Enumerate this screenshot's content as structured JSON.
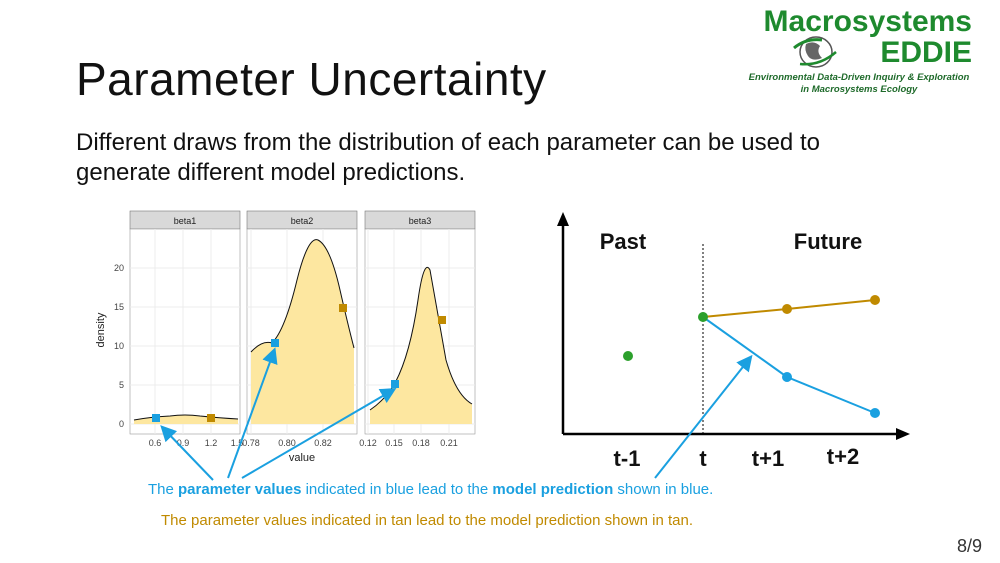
{
  "slide": {
    "title": "Parameter Uncertainty",
    "subtitle": "Different draws from the distribution of each parameter can be used to generate different model predictions.",
    "page_number": "8/9"
  },
  "logo": {
    "line1": "Macrosystems",
    "line2": "EDDIE",
    "tagline1": "Environmental Data-Driven Inquiry & Exploration",
    "tagline2": "in Macrosystems Ecology"
  },
  "density_plot": {
    "ylabel": "density",
    "xlabel": "value",
    "y_ticks": [
      "0",
      "5",
      "10",
      "15",
      "20"
    ],
    "panels": [
      {
        "name": "beta1",
        "x_ticks": [
          "0.6",
          "0.9",
          "1.2",
          "1.5"
        ]
      },
      {
        "name": "beta2",
        "x_ticks": [
          "0.78",
          "0.80",
          "0.82"
        ]
      },
      {
        "name": "beta3",
        "x_ticks": [
          "0.12",
          "0.15",
          "0.18",
          "0.21"
        ]
      }
    ]
  },
  "prediction_plot": {
    "past_label": "Past",
    "future_label": "Future",
    "x_labels": [
      "t-1",
      "t",
      "t+1",
      "t+2"
    ]
  },
  "notes": {
    "blue_1": "The ",
    "blue_bold_1": "parameter values",
    "blue_2": " indicated in blue lead to the ",
    "blue_bold_2": "model prediction",
    "blue_3": " shown in blue.",
    "tan": "The parameter values indicated in tan lead to the model prediction shown in tan."
  },
  "colors": {
    "blue": "#1aa0e0",
    "tan": "#c08a00",
    "green": "#2ca02c",
    "fill": "#fde7a0",
    "logo_green": "#1e8a2e"
  }
}
